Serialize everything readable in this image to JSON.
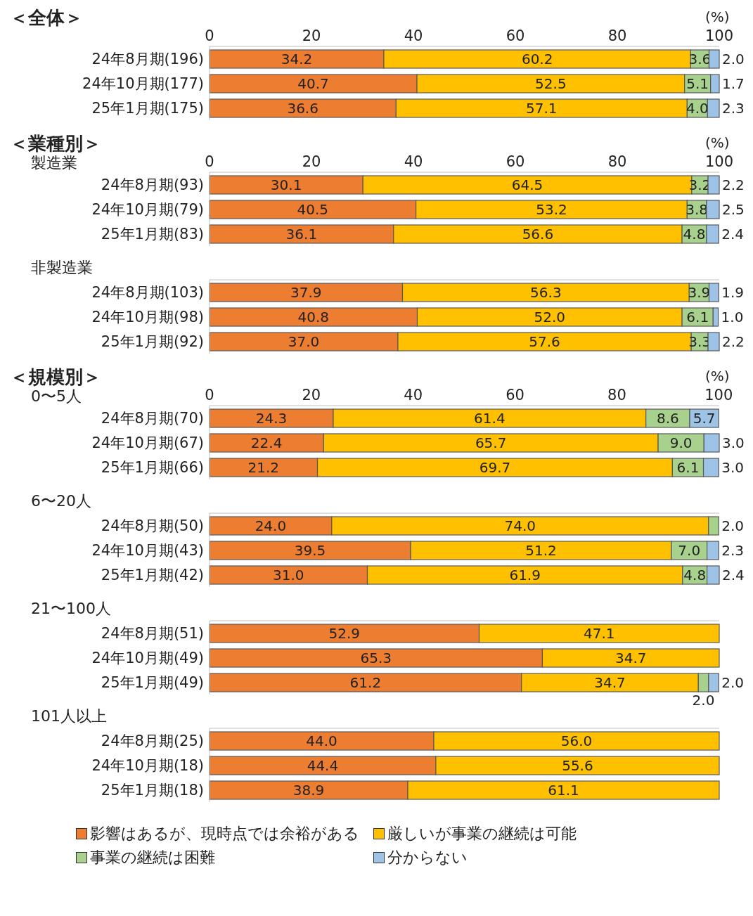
{
  "chart_data": [
    {
      "type": "bar",
      "orientation": "horizontal",
      "stacked": true,
      "title": "＜全体＞",
      "xlabel": "(%)",
      "categories": [
        "24年8月期(196)",
        "24年10月期(177)",
        "25年1月期(175)"
      ],
      "xlim": [
        0,
        100
      ],
      "xticks": [
        0,
        20,
        40,
        60,
        80,
        100
      ],
      "series": [
        {
          "color": "#ed7d31",
          "values": [
            34.2,
            40.7,
            36.6
          ],
          "value_labels": [
            "34.2",
            "40.7",
            "36.6"
          ]
        },
        {
          "color": "#ffc000",
          "values": [
            60.2,
            52.5,
            57.1
          ],
          "value_labels": [
            "60.2",
            "52.5",
            "57.1"
          ]
        },
        {
          "color": "#a9d18e",
          "values": [
            3.6,
            5.1,
            4.0
          ],
          "value_labels": [
            "3.6",
            "5.1",
            "4.0"
          ]
        },
        {
          "color": "#9dc3e6",
          "values": [
            2.0,
            1.7,
            2.3
          ],
          "value_labels": [
            "2.0",
            "1.7",
            "2.3"
          ]
        }
      ]
    },
    {
      "type": "bar",
      "orientation": "horizontal",
      "stacked": true,
      "title": "＜業種別＞",
      "subtitle": "製造業",
      "xlabel": "(%)",
      "categories": [
        "24年8月期(93)",
        "24年10月期(79)",
        "25年1月期(83)"
      ],
      "xlim": [
        0,
        100
      ],
      "xticks": [
        0,
        20,
        40,
        60,
        80,
        100
      ],
      "series": [
        {
          "color": "#ed7d31",
          "values": [
            30.1,
            40.5,
            36.1
          ],
          "value_labels": [
            "30.1",
            "40.5",
            "36.1"
          ]
        },
        {
          "color": "#ffc000",
          "values": [
            64.5,
            53.2,
            56.6
          ],
          "value_labels": [
            "64.5",
            "53.2",
            "56.6"
          ]
        },
        {
          "color": "#a9d18e",
          "values": [
            3.2,
            3.8,
            4.8
          ],
          "value_labels": [
            "3.2",
            "3.8",
            "4.8"
          ]
        },
        {
          "color": "#9dc3e6",
          "values": [
            2.2,
            2.5,
            2.4
          ],
          "value_labels": [
            "2.2",
            "2.5",
            "2.4"
          ]
        }
      ]
    },
    {
      "type": "bar",
      "orientation": "horizontal",
      "stacked": true,
      "subtitle": "非製造業",
      "tick_labels": "y",
      "categories": [
        "24年8月期(103)",
        "24年10月期(98)",
        "25年1月期(92)"
      ],
      "xlim": [
        0,
        100
      ],
      "series": [
        {
          "color": "#ed7d31",
          "values": [
            37.9,
            40.8,
            37.0
          ],
          "value_labels": [
            "37.9",
            "40.8",
            "37.0"
          ]
        },
        {
          "color": "#ffc000",
          "values": [
            56.3,
            52.0,
            57.6
          ],
          "value_labels": [
            "56.3",
            "52.0",
            "57.6"
          ]
        },
        {
          "color": "#a9d18e",
          "values": [
            3.9,
            6.1,
            3.3
          ],
          "value_labels": [
            "3.9",
            "6.1",
            "3.3"
          ]
        },
        {
          "color": "#9dc3e6",
          "values": [
            1.9,
            1.0,
            2.2
          ],
          "value_labels": [
            "1.9",
            "1.0",
            "2.2"
          ]
        }
      ]
    },
    {
      "type": "bar",
      "orientation": "horizontal",
      "stacked": true,
      "title": "＜規模別＞",
      "subtitle": "0〜5人",
      "xlabel": "(%)",
      "categories": [
        "24年8月期(70)",
        "24年10月期(67)",
        "25年1月期(66)"
      ],
      "xlim": [
        0,
        100
      ],
      "xticks": [
        0,
        20,
        40,
        60,
        80,
        100
      ],
      "series": [
        {
          "color": "#ed7d31",
          "values": [
            24.3,
            22.4,
            21.2
          ],
          "value_labels": [
            "24.3",
            "22.4",
            "21.2"
          ]
        },
        {
          "color": "#ffc000",
          "values": [
            61.4,
            65.7,
            69.7
          ],
          "value_labels": [
            "61.4",
            "65.7",
            "69.7"
          ]
        },
        {
          "color": "#a9d18e",
          "values": [
            8.6,
            9.0,
            6.1
          ],
          "value_labels": [
            "8.6",
            "9.0",
            "6.1"
          ]
        },
        {
          "color": "#9dc3e6",
          "values": [
            5.7,
            3.0,
            3.0
          ],
          "value_labels": [
            "5.7",
            "3.0",
            "3.0"
          ]
        }
      ]
    },
    {
      "type": "bar",
      "orientation": "horizontal",
      "stacked": true,
      "subtitle": "6〜20人",
      "tick_labels": "y",
      "categories": [
        "24年8月期(50)",
        "24年10月期(43)",
        "25年1月期(42)"
      ],
      "xlim": [
        0,
        100
      ],
      "series": [
        {
          "color": "#ed7d31",
          "values": [
            24.0,
            39.5,
            31.0
          ],
          "value_labels": [
            "24.0",
            "39.5",
            "31.0"
          ]
        },
        {
          "color": "#ffc000",
          "values": [
            74.0,
            51.2,
            61.9
          ],
          "value_labels": [
            "74.0",
            "51.2",
            "61.9"
          ]
        },
        {
          "color": "#a9d18e",
          "values": [
            2.0,
            7.0,
            4.8
          ],
          "value_labels": [
            "2.0",
            "7.0",
            "4.8"
          ]
        },
        {
          "color": "#9dc3e6",
          "values": [
            null,
            2.3,
            2.4
          ],
          "value_labels": [
            null,
            "2.3",
            "2.4"
          ]
        }
      ]
    },
    {
      "type": "bar",
      "orientation": "horizontal",
      "stacked": true,
      "subtitle": "21〜100人",
      "tick_labels": "y",
      "categories": [
        "24年8月期(51)",
        "24年10月期(49)",
        "25年1月期(49)"
      ],
      "xlim": [
        0,
        100
      ],
      "series": [
        {
          "color": "#ed7d31",
          "values": [
            52.9,
            65.3,
            61.2
          ],
          "value_labels": [
            "52.9",
            "65.3",
            "61.2"
          ]
        },
        {
          "color": "#ffc000",
          "values": [
            47.1,
            34.7,
            34.7
          ],
          "value_labels": [
            "47.1",
            "34.7",
            "34.7"
          ]
        },
        {
          "color": "#a9d18e",
          "values": [
            null,
            null,
            2.0
          ],
          "value_labels": [
            null,
            null,
            "2.0"
          ]
        },
        {
          "color": "#9dc3e6",
          "values": [
            null,
            null,
            2.0
          ],
          "value_labels": [
            null,
            null,
            "2.0"
          ]
        }
      ]
    },
    {
      "type": "bar",
      "orientation": "horizontal",
      "stacked": true,
      "subtitle": "101人以上",
      "tick_labels": "y",
      "legend": "bottom",
      "categories": [
        "24年8月期(25)",
        "24年10月期(18)",
        "25年1月期(18)"
      ],
      "xlim": [
        0,
        100
      ],
      "series": [
        {
          "name": "影響はあるが、現時点では余裕がある",
          "color": "#ed7d31",
          "values": [
            44.0,
            44.4,
            38.9
          ],
          "value_labels": [
            "44.0",
            "44.4",
            "38.9"
          ]
        },
        {
          "name": "厳しいが事業の継続は可能",
          "color": "#ffc000",
          "values": [
            56.0,
            55.6,
            61.1
          ],
          "value_labels": [
            "56.0",
            "55.6",
            "61.1"
          ]
        },
        {
          "name": "事業の継続は困難",
          "color": "#a9d18e",
          "values": [
            null,
            null,
            null
          ]
        },
        {
          "name": "分からない",
          "color": "#9dc3e6",
          "values": [
            null,
            null,
            null
          ]
        }
      ]
    }
  ]
}
